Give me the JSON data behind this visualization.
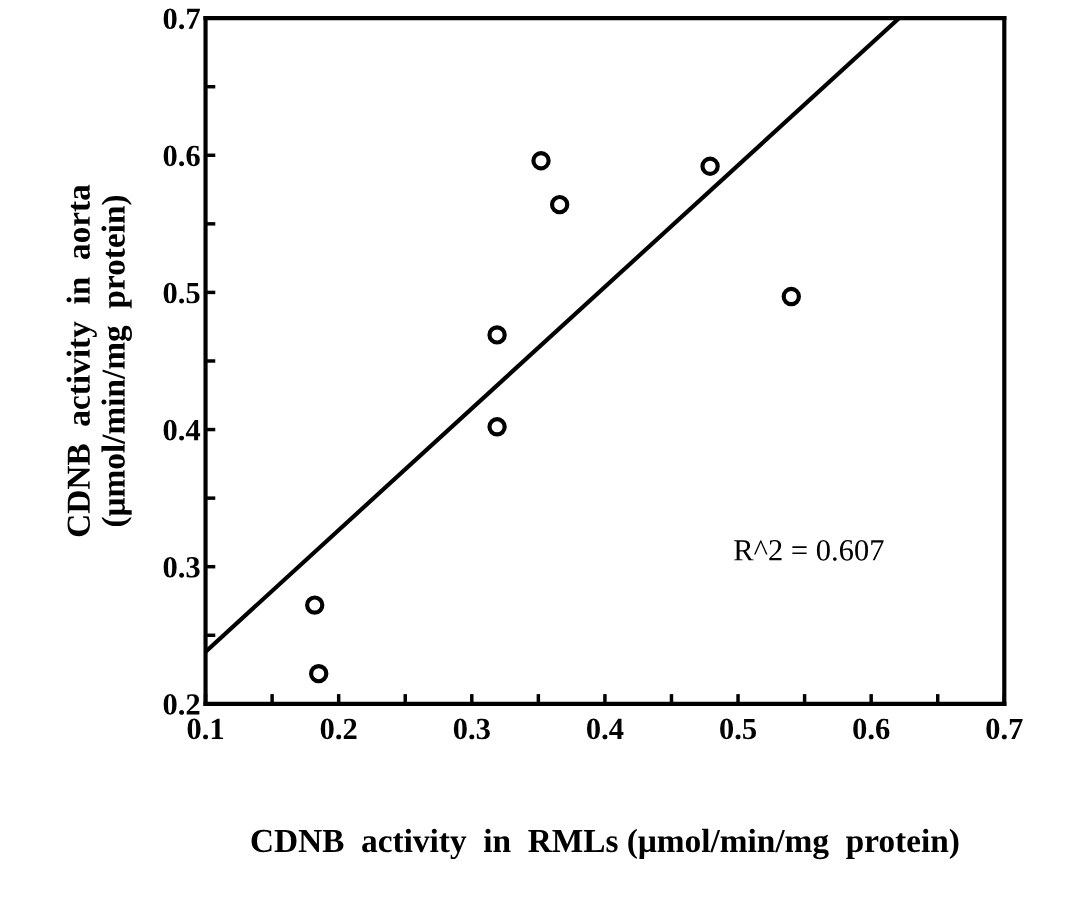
{
  "chart_data": {
    "type": "scatter",
    "xlabel": "CDNB  activity  in  RMLs (μmol/min/mg  protein)",
    "ylabel": "CDNB  activity  in  aorta\n(μmol/min/mg  protein)",
    "annotations": [
      "R^2 = 0.607"
    ],
    "series": [
      {
        "color": "#000000",
        "marker": "circle",
        "x": [
          0.182,
          0.185,
          0.319,
          0.319,
          0.352,
          0.366,
          0.479,
          0.54
        ],
        "values": [
          0.272,
          0.222,
          0.402,
          0.469,
          0.596,
          0.564,
          0.592,
          0.497
        ]
      },
      {
        "type": "line",
        "color": "#000000",
        "marker": "none",
        "line_style": "solid",
        "x": [
          0.1,
          0.621
        ],
        "values": [
          0.238,
          0.7
        ]
      }
    ],
    "xlim": [
      0.1,
      0.7
    ],
    "ylim": [
      0.2,
      0.7
    ],
    "xticks": [
      {
        "value": 0.1,
        "label": "0.1"
      },
      {
        "value": 0.15,
        "label": null
      },
      {
        "value": 0.2,
        "label": "0.2"
      },
      {
        "value": 0.25,
        "label": null
      },
      {
        "value": 0.3,
        "label": "0.3"
      },
      {
        "value": 0.35,
        "label": null
      },
      {
        "value": 0.4,
        "label": "0.4"
      },
      {
        "value": 0.45,
        "label": null
      },
      {
        "value": 0.5,
        "label": "0.5"
      },
      {
        "value": 0.55,
        "label": null
      },
      {
        "value": 0.6,
        "label": "0.6"
      },
      {
        "value": 0.65,
        "label": null
      },
      {
        "value": 0.7,
        "label": "0.7"
      }
    ],
    "yticks": [
      {
        "value": 0.2,
        "label": "0.2"
      },
      {
        "value": 0.25,
        "label": null
      },
      {
        "value": 0.3,
        "label": "0.3"
      },
      {
        "value": 0.35,
        "label": null
      },
      {
        "value": 0.4,
        "label": "0.4"
      },
      {
        "value": 0.45,
        "label": null
      },
      {
        "value": 0.5,
        "label": "0.5"
      },
      {
        "value": 0.55,
        "label": null
      },
      {
        "value": 0.6,
        "label": "0.6"
      },
      {
        "value": 0.65,
        "label": null
      },
      {
        "value": 0.7,
        "label": "0.7"
      }
    ],
    "grid": false,
    "legend": false
  }
}
